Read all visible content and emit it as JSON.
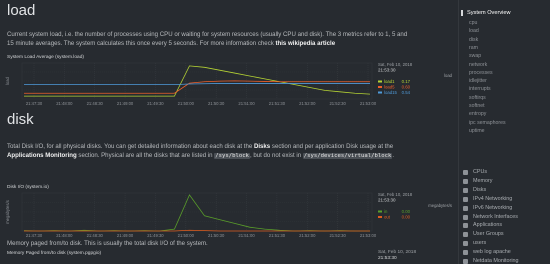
{
  "sidebar": {
    "title": "System Overview",
    "items": [
      "cpu",
      "load",
      "disk",
      "ram",
      "swap",
      "network",
      "processes",
      "idlejitter",
      "interrupts",
      "softirqs",
      "softnet",
      "entropy",
      "ipc semaphores",
      "uptime"
    ],
    "sections": [
      "CPUs",
      "Memory",
      "Disks",
      "IPv4 Networking",
      "IPv6 Networking",
      "Network Interfaces",
      "Applications",
      "User Groups",
      "users",
      "web log apache",
      "Netdata Monitoring"
    ]
  },
  "load": {
    "heading": "load",
    "description": [
      [
        {
          "text": "Current system load, i.e. the number of processes using CPU or waiting for system resources (usually CPU and disk). The 3 metrics refer to 1, 5 and",
          "kind": "text"
        }
      ],
      [
        {
          "text": "15 minute averages. The system calculates this once every 5 seconds. For more information check ",
          "kind": "text"
        },
        {
          "text": "this wikipedia article",
          "kind": "strong"
        }
      ]
    ],
    "chart": {
      "title": "System Load Average (system.load)",
      "unit": "load",
      "date": "Sat, Feb 10, 2018",
      "time": "21:53:30",
      "ylim": [
        0,
        1.25
      ],
      "ticks": [
        "21:47:30",
        "21:48:00",
        "21:48:30",
        "21:49:00",
        "21:49:30",
        "21:50:00",
        "21:50:30",
        "21:51:00",
        "21:51:30",
        "21:52:00",
        "21:52:30",
        "21:53:00"
      ],
      "series": [
        {
          "name": "load1",
          "color": "#b5d334",
          "current": "0.17",
          "values": [
            0.1,
            0.1,
            0.1,
            0.1,
            0.1,
            0.1,
            0.1,
            0.1,
            0.1,
            0.1,
            0.1,
            1.15,
            1.1,
            1.0,
            0.9,
            0.8,
            0.7,
            0.6,
            0.5,
            0.4,
            0.3,
            0.25,
            0.2,
            0.17
          ]
        },
        {
          "name": "load5",
          "color": "#f0602a",
          "current": "0.60",
          "values": [
            0.2,
            0.2,
            0.2,
            0.2,
            0.2,
            0.2,
            0.2,
            0.2,
            0.2,
            0.2,
            0.2,
            0.55,
            0.6,
            0.62,
            0.63,
            0.62,
            0.61,
            0.6,
            0.6,
            0.6,
            0.6,
            0.6,
            0.6,
            0.6
          ]
        },
        {
          "name": "load15",
          "color": "#4f9bda",
          "current": "0.54",
          "values": [
            0.5,
            0.5,
            0.5,
            0.5,
            0.5,
            0.5,
            0.5,
            0.5,
            0.5,
            0.5,
            0.5,
            0.52,
            0.53,
            0.54,
            0.54,
            0.54,
            0.54,
            0.54,
            0.54,
            0.54,
            0.54,
            0.54,
            0.54,
            0.54
          ]
        }
      ]
    }
  },
  "disk": {
    "heading": "disk",
    "description": [
      [
        {
          "text": "Total Disk I/O, for all physical disks. You can get detailed information about each disk at the ",
          "kind": "text"
        },
        {
          "text": "Disks",
          "kind": "strong"
        },
        {
          "text": " section and per application Disk usage at the",
          "kind": "text"
        }
      ],
      [
        {
          "text": "Applications Monitoring",
          "kind": "strong"
        },
        {
          "text": " section. Physical are all the disks that are listed in ",
          "kind": "text"
        },
        {
          "text": "/sys/block",
          "kind": "code"
        },
        {
          "text": ", but do not exist in ",
          "kind": "text"
        },
        {
          "text": "/sys/devices/virtual/block",
          "kind": "code"
        },
        {
          "text": ".",
          "kind": "text"
        }
      ]
    ],
    "chart": {
      "title": "Disk I/O (system.io)",
      "unit": "megabytes/s",
      "date": "Sat, Feb 10, 2018",
      "time": "21:53:30",
      "ylim": [
        0,
        1
      ],
      "ticks": [
        "21:47:30",
        "21:48:00",
        "21:48:30",
        "21:49:00",
        "21:49:30",
        "21:50:00",
        "21:50:30",
        "21:51:00",
        "21:51:30",
        "21:52:00",
        "21:52:30",
        "21:53:00"
      ],
      "series": [
        {
          "name": "in",
          "color": "#5a9f2a",
          "current": "0.00",
          "values": [
            0.01,
            0.0,
            0.01,
            0.0,
            0.02,
            0.0,
            0.01,
            0.0,
            0.01,
            0.0,
            0.05,
            0.95,
            0.4,
            0.3,
            0.2,
            0.1,
            0.05,
            0.02,
            0.0,
            0.01,
            0.0,
            0.01,
            0.0,
            0.0
          ]
        },
        {
          "name": "out",
          "color": "#e05e1f",
          "current": "0.00",
          "values": [
            0.0,
            0.0,
            0.0,
            0.0,
            0.0,
            0.0,
            0.0,
            0.0,
            0.0,
            0.0,
            0.0,
            0.02,
            0.01,
            0.0,
            0.0,
            0.0,
            0.0,
            0.0,
            0.0,
            0.0,
            0.0,
            0.0,
            0.0,
            0.0
          ]
        }
      ]
    }
  },
  "pgpgio": {
    "description": "Memory paged from/to disk. This is usually the total disk I/O of the system.",
    "chart_title": "Memory Paged from/to disk (system.pgpgio)",
    "date": "Sat, Feb 10, 2018",
    "time": "21:53:30"
  }
}
